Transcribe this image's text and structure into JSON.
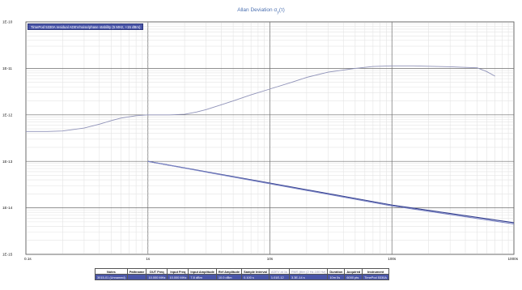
{
  "chart_data": {
    "type": "line",
    "title": "Allan Deviation σ",
    "title_sub": "y",
    "title_suffix": "(τ)",
    "x_scale": "log",
    "y_scale": "log",
    "xlim": [
      0.1,
      1000
    ],
    "ylim": [
      1e-15,
      1e-10
    ],
    "x_ticks": [
      {
        "value": 0.1,
        "label": "0.1s"
      },
      {
        "value": 1,
        "label": "1s"
      },
      {
        "value": 10,
        "label": "10s"
      },
      {
        "value": 100,
        "label": "100s"
      },
      {
        "value": 1000,
        "label": "1000s"
      }
    ],
    "y_ticks": [
      {
        "value": 1e-10,
        "label": "1E-10"
      },
      {
        "value": 1e-11,
        "label": "1E-11"
      },
      {
        "value": 1e-12,
        "label": "1E-12"
      },
      {
        "value": 1e-13,
        "label": "1E-13"
      },
      {
        "value": 1e-14,
        "label": "1E-14"
      },
      {
        "value": 1e-15,
        "label": "1E-15"
      }
    ],
    "grid": true,
    "legend": {
      "label": "TimePod 5330A residual ADEV/noise/phase stability (5 MHz, +15 dBm)",
      "placement": "top-left"
    },
    "marker_x": 1,
    "series": [
      {
        "color": "#8f92b8",
        "x": [
          0.1,
          0.15,
          0.2,
          0.3,
          0.4,
          0.5,
          0.6,
          0.8,
          1,
          1.2,
          1.5,
          2,
          2.5,
          3,
          4,
          5,
          7,
          10,
          15,
          20,
          30,
          50,
          70,
          100,
          150,
          200,
          300,
          400,
          500,
          600,
          700
        ],
        "y": [
          4.4e-13,
          4.4e-13,
          4.5e-13,
          5.2e-13,
          6.3e-13,
          7.5e-13,
          8.5e-13,
          9.6e-13,
          1e-12,
          1e-12,
          1e-12,
          1.03e-12,
          1.15e-12,
          1.3e-12,
          1.65e-12,
          2e-12,
          2.7e-12,
          3.6e-12,
          5e-12,
          6.4e-12,
          8.3e-12,
          1e-11,
          1.1e-11,
          1.13e-11,
          1.13e-11,
          1.11e-11,
          1.08e-11,
          1.05e-11,
          1.03e-11,
          8.5e-12,
          6.8e-12
        ]
      },
      {
        "color": "#2e3a8c",
        "x": [
          1,
          10,
          100,
          1000
        ],
        "y": [
          1e-13,
          3.4e-14,
          1.15e-14,
          4.8e-15
        ]
      },
      {
        "color": "#7b84c4",
        "x": [
          1,
          10,
          100,
          1000
        ],
        "y": [
          1e-13,
          3.3e-14,
          1.1e-14,
          4.5e-15
        ]
      }
    ]
  },
  "info_table": {
    "headers": [
      "Notes",
      "Pathname",
      "DUT Freq",
      "Input Freq",
      "Input Amplitude",
      "Ref Amplitude",
      "Sample Interval",
      "ADEV at 1s",
      "RMS jitter (2 Hz-100 Hz)",
      "Duration",
      "Acquired",
      "Instrument"
    ],
    "row": [
      "3015-01 (Unnamed)",
      "",
      "10.000 MHz",
      "10.000 MHz",
      "7.8 dBm",
      "10.0 dBm",
      "0.100 s",
      "1.01E-12",
      "3.3E-14 s",
      "10m 0s",
      "6000 pts",
      "TimePod 5330A"
    ]
  }
}
